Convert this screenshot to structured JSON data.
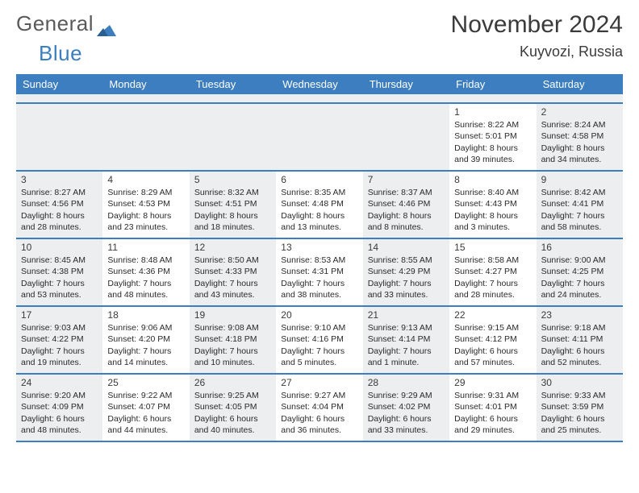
{
  "brand": {
    "part1": "General",
    "part2": "Blue"
  },
  "title": "November 2024",
  "location": "Kuyvozi, Russia",
  "header_bg": "#3c7ebf",
  "weekday_labels": [
    "Sunday",
    "Monday",
    "Tuesday",
    "Wednesday",
    "Thursday",
    "Friday",
    "Saturday"
  ],
  "cell_bg_odd": "#eceeef",
  "cell_bg_even": "#ffffff",
  "font_color": "#2a2a2a",
  "weeks": [
    [
      null,
      null,
      null,
      null,
      null,
      {
        "day": "1",
        "sunrise": "Sunrise: 8:22 AM",
        "sunset": "Sunset: 5:01 PM",
        "daylight": "Daylight: 8 hours and 39 minutes."
      },
      {
        "day": "2",
        "sunrise": "Sunrise: 8:24 AM",
        "sunset": "Sunset: 4:58 PM",
        "daylight": "Daylight: 8 hours and 34 minutes."
      }
    ],
    [
      {
        "day": "3",
        "sunrise": "Sunrise: 8:27 AM",
        "sunset": "Sunset: 4:56 PM",
        "daylight": "Daylight: 8 hours and 28 minutes."
      },
      {
        "day": "4",
        "sunrise": "Sunrise: 8:29 AM",
        "sunset": "Sunset: 4:53 PM",
        "daylight": "Daylight: 8 hours and 23 minutes."
      },
      {
        "day": "5",
        "sunrise": "Sunrise: 8:32 AM",
        "sunset": "Sunset: 4:51 PM",
        "daylight": "Daylight: 8 hours and 18 minutes."
      },
      {
        "day": "6",
        "sunrise": "Sunrise: 8:35 AM",
        "sunset": "Sunset: 4:48 PM",
        "daylight": "Daylight: 8 hours and 13 minutes."
      },
      {
        "day": "7",
        "sunrise": "Sunrise: 8:37 AM",
        "sunset": "Sunset: 4:46 PM",
        "daylight": "Daylight: 8 hours and 8 minutes."
      },
      {
        "day": "8",
        "sunrise": "Sunrise: 8:40 AM",
        "sunset": "Sunset: 4:43 PM",
        "daylight": "Daylight: 8 hours and 3 minutes."
      },
      {
        "day": "9",
        "sunrise": "Sunrise: 8:42 AM",
        "sunset": "Sunset: 4:41 PM",
        "daylight": "Daylight: 7 hours and 58 minutes."
      }
    ],
    [
      {
        "day": "10",
        "sunrise": "Sunrise: 8:45 AM",
        "sunset": "Sunset: 4:38 PM",
        "daylight": "Daylight: 7 hours and 53 minutes."
      },
      {
        "day": "11",
        "sunrise": "Sunrise: 8:48 AM",
        "sunset": "Sunset: 4:36 PM",
        "daylight": "Daylight: 7 hours and 48 minutes."
      },
      {
        "day": "12",
        "sunrise": "Sunrise: 8:50 AM",
        "sunset": "Sunset: 4:33 PM",
        "daylight": "Daylight: 7 hours and 43 minutes."
      },
      {
        "day": "13",
        "sunrise": "Sunrise: 8:53 AM",
        "sunset": "Sunset: 4:31 PM",
        "daylight": "Daylight: 7 hours and 38 minutes."
      },
      {
        "day": "14",
        "sunrise": "Sunrise: 8:55 AM",
        "sunset": "Sunset: 4:29 PM",
        "daylight": "Daylight: 7 hours and 33 minutes."
      },
      {
        "day": "15",
        "sunrise": "Sunrise: 8:58 AM",
        "sunset": "Sunset: 4:27 PM",
        "daylight": "Daylight: 7 hours and 28 minutes."
      },
      {
        "day": "16",
        "sunrise": "Sunrise: 9:00 AM",
        "sunset": "Sunset: 4:25 PM",
        "daylight": "Daylight: 7 hours and 24 minutes."
      }
    ],
    [
      {
        "day": "17",
        "sunrise": "Sunrise: 9:03 AM",
        "sunset": "Sunset: 4:22 PM",
        "daylight": "Daylight: 7 hours and 19 minutes."
      },
      {
        "day": "18",
        "sunrise": "Sunrise: 9:06 AM",
        "sunset": "Sunset: 4:20 PM",
        "daylight": "Daylight: 7 hours and 14 minutes."
      },
      {
        "day": "19",
        "sunrise": "Sunrise: 9:08 AM",
        "sunset": "Sunset: 4:18 PM",
        "daylight": "Daylight: 7 hours and 10 minutes."
      },
      {
        "day": "20",
        "sunrise": "Sunrise: 9:10 AM",
        "sunset": "Sunset: 4:16 PM",
        "daylight": "Daylight: 7 hours and 5 minutes."
      },
      {
        "day": "21",
        "sunrise": "Sunrise: 9:13 AM",
        "sunset": "Sunset: 4:14 PM",
        "daylight": "Daylight: 7 hours and 1 minute."
      },
      {
        "day": "22",
        "sunrise": "Sunrise: 9:15 AM",
        "sunset": "Sunset: 4:12 PM",
        "daylight": "Daylight: 6 hours and 57 minutes."
      },
      {
        "day": "23",
        "sunrise": "Sunrise: 9:18 AM",
        "sunset": "Sunset: 4:11 PM",
        "daylight": "Daylight: 6 hours and 52 minutes."
      }
    ],
    [
      {
        "day": "24",
        "sunrise": "Sunrise: 9:20 AM",
        "sunset": "Sunset: 4:09 PM",
        "daylight": "Daylight: 6 hours and 48 minutes."
      },
      {
        "day": "25",
        "sunrise": "Sunrise: 9:22 AM",
        "sunset": "Sunset: 4:07 PM",
        "daylight": "Daylight: 6 hours and 44 minutes."
      },
      {
        "day": "26",
        "sunrise": "Sunrise: 9:25 AM",
        "sunset": "Sunset: 4:05 PM",
        "daylight": "Daylight: 6 hours and 40 minutes."
      },
      {
        "day": "27",
        "sunrise": "Sunrise: 9:27 AM",
        "sunset": "Sunset: 4:04 PM",
        "daylight": "Daylight: 6 hours and 36 minutes."
      },
      {
        "day": "28",
        "sunrise": "Sunrise: 9:29 AM",
        "sunset": "Sunset: 4:02 PM",
        "daylight": "Daylight: 6 hours and 33 minutes."
      },
      {
        "day": "29",
        "sunrise": "Sunrise: 9:31 AM",
        "sunset": "Sunset: 4:01 PM",
        "daylight": "Daylight: 6 hours and 29 minutes."
      },
      {
        "day": "30",
        "sunrise": "Sunrise: 9:33 AM",
        "sunset": "Sunset: 3:59 PM",
        "daylight": "Daylight: 6 hours and 25 minutes."
      }
    ]
  ]
}
